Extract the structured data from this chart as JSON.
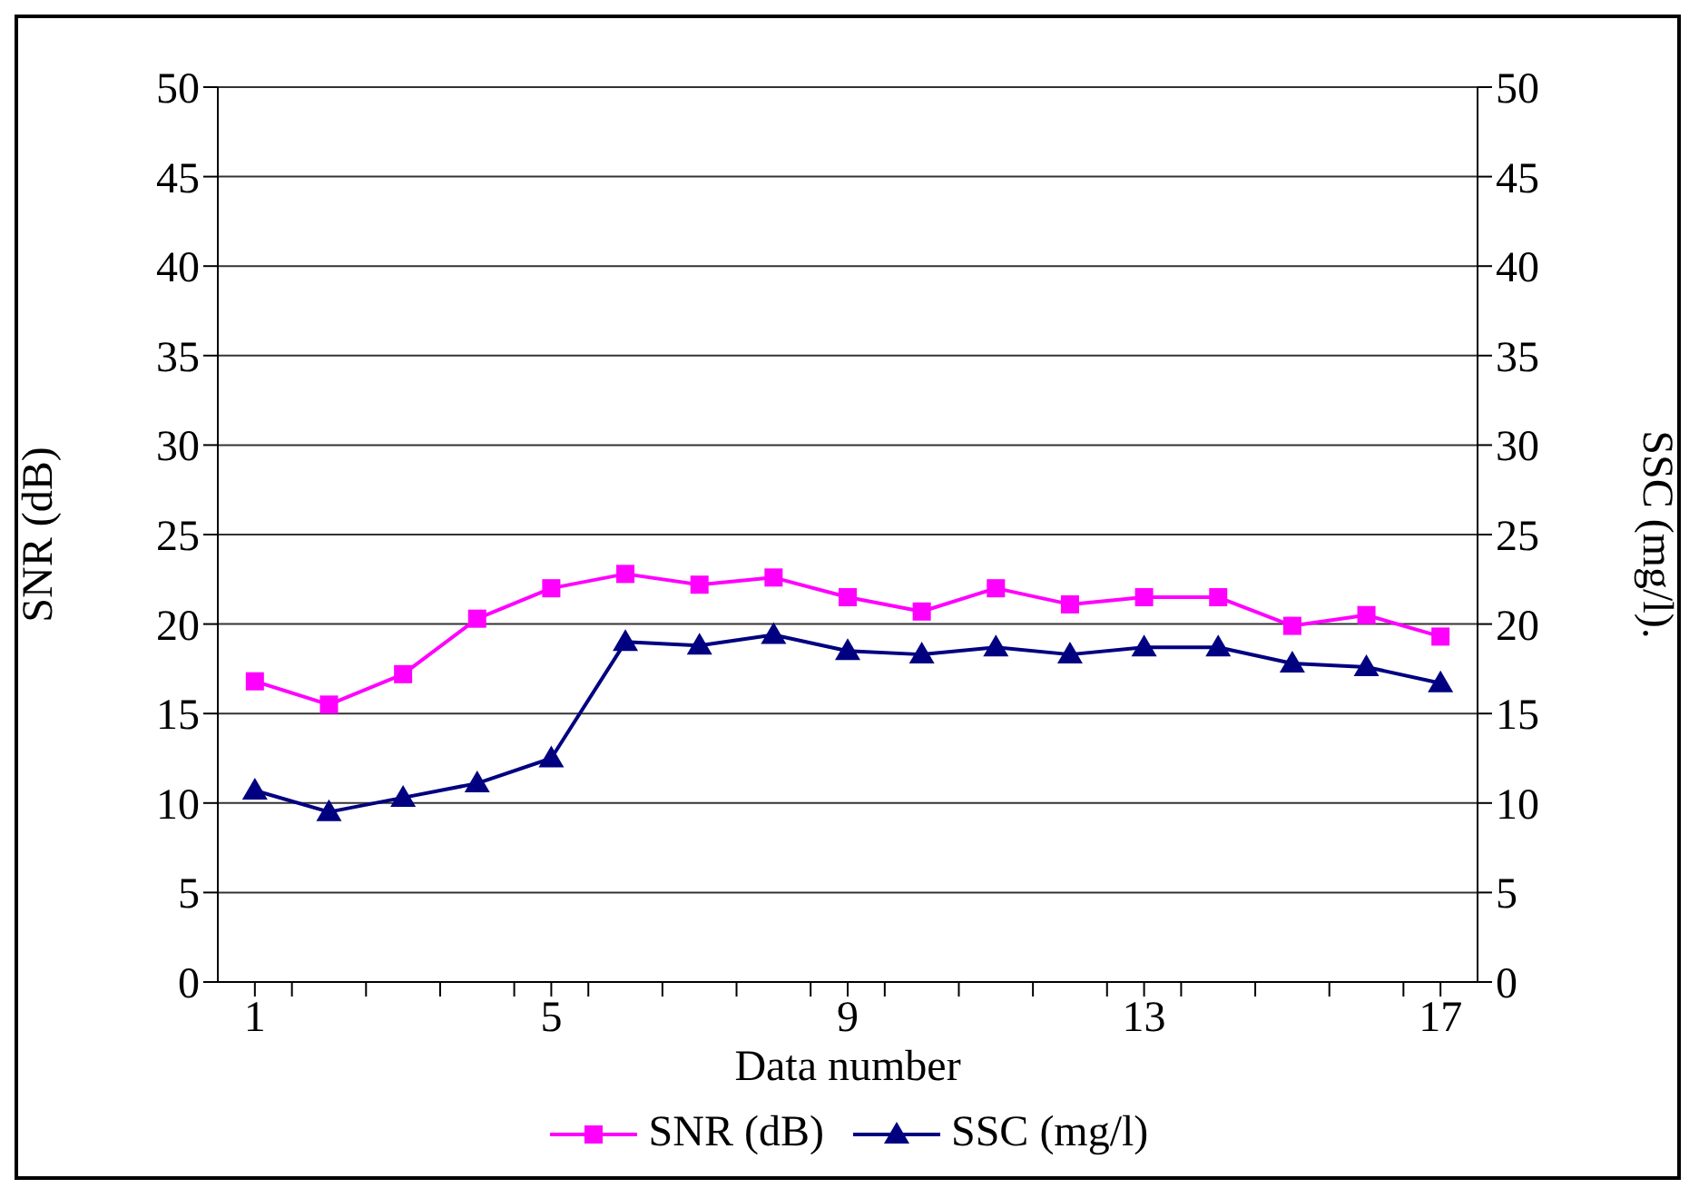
{
  "chart_data": {
    "type": "line",
    "xlabel": "Data number",
    "ylabel": "SNR (dB)",
    "y2label": "SSC (mg/l).",
    "x": [
      1,
      2,
      3,
      4,
      5,
      6,
      7,
      8,
      9,
      10,
      11,
      12,
      13,
      14,
      15,
      16,
      17
    ],
    "series": [
      {
        "name": "SNR (dB)",
        "color": "#ff00ff",
        "marker": "square",
        "values": [
          16.8,
          15.5,
          17.2,
          20.3,
          22,
          22.8,
          22.2,
          22.6,
          21.5,
          20.7,
          22,
          21.1,
          21.5,
          21.5,
          19.9,
          20.5,
          19.3
        ]
      },
      {
        "name": "SSC (mg/l)",
        "color": "#000080",
        "marker": "triangle",
        "axis": "y2",
        "values": [
          10.7,
          9.5,
          10.3,
          11.1,
          12.5,
          19,
          18.8,
          19.4,
          18.5,
          18.3,
          18.7,
          18.3,
          18.7,
          18.7,
          17.8,
          17.6,
          16.7
        ]
      }
    ],
    "xlim": [
      0.5,
      17.5
    ],
    "xticks": [
      1,
      {
        "value": 1.5,
        "label": null
      },
      {
        "value": 2.5,
        "label": null
      },
      {
        "value": 3.5,
        "label": null
      },
      {
        "value": 4.5,
        "label": null
      },
      5,
      {
        "value": 5.5,
        "label": null
      },
      {
        "value": 6.5,
        "label": null
      },
      {
        "value": 7.5,
        "label": null
      },
      {
        "value": 8.5,
        "label": null
      },
      9,
      {
        "value": 9.5,
        "label": null
      },
      {
        "value": 10.5,
        "label": null
      },
      {
        "value": 11.5,
        "label": null
      },
      {
        "value": 12.5,
        "label": null
      },
      13,
      {
        "value": 13.5,
        "label": null
      },
      {
        "value": 14.5,
        "label": null
      },
      {
        "value": 15.5,
        "label": null
      },
      {
        "value": 16.5,
        "label": null
      },
      17
    ],
    "ylim": [
      0,
      50
    ],
    "yticks": [
      0,
      5,
      10,
      15,
      20,
      25,
      30,
      35,
      40,
      45,
      50
    ],
    "y2lim": [
      0,
      50
    ],
    "y2ticks": [
      0,
      5,
      10,
      15,
      20,
      25,
      30,
      35,
      40,
      45,
      50
    ],
    "grid": "y",
    "legend": "bottom",
    "line_style": "solid"
  }
}
